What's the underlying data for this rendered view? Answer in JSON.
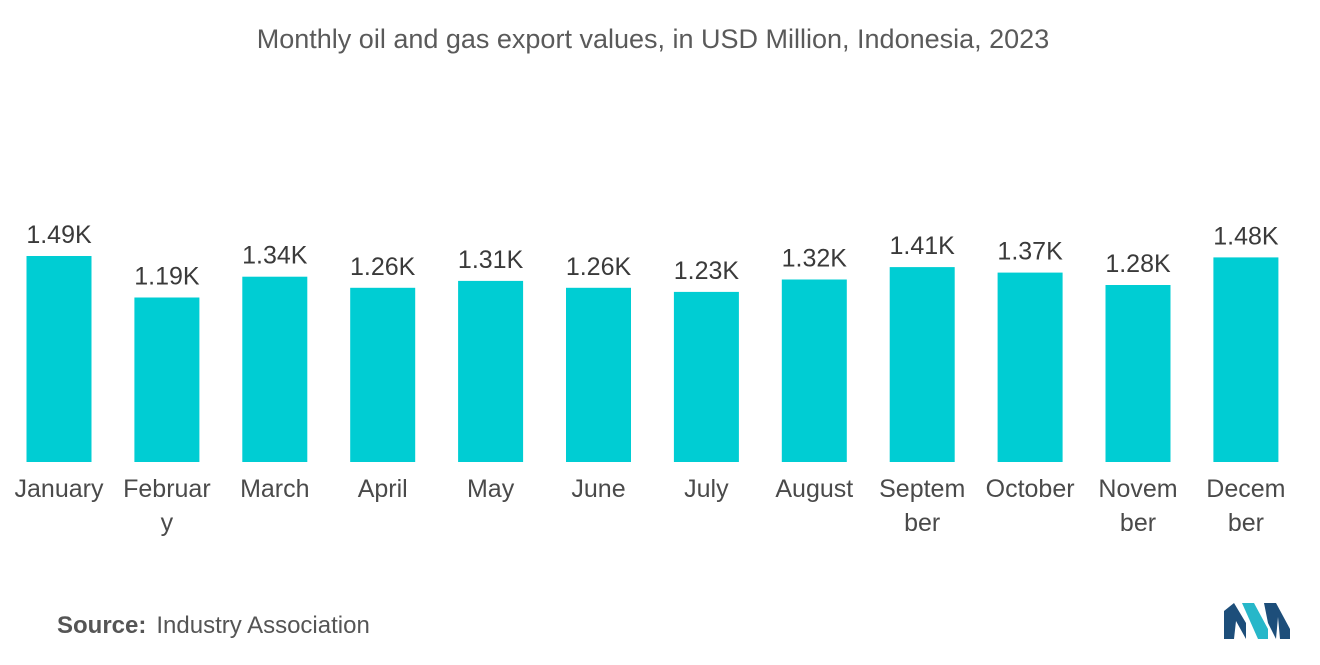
{
  "title": "Monthly oil and gas export values, in USD Million, Indonesia, 2023",
  "source": {
    "label": "Source:",
    "text": "Industry Association"
  },
  "colors": {
    "bar": "#00CDD3",
    "logo_dark": "#1D4E7A",
    "logo_light": "#27B7C9"
  },
  "logo_icon": "brand-logo-icon",
  "chart_data": {
    "type": "bar",
    "title": "Monthly oil and gas export values, in USD Million, Indonesia, 2023",
    "xlabel": "",
    "ylabel": "",
    "grid": false,
    "categories": [
      "January",
      "February",
      "March",
      "April",
      "May",
      "June",
      "July",
      "August",
      "September",
      "October",
      "November",
      "December"
    ],
    "category_label_lines": [
      [
        "January"
      ],
      [
        "Februar",
        "y"
      ],
      [
        "March"
      ],
      [
        "April"
      ],
      [
        "May"
      ],
      [
        "June"
      ],
      [
        "July"
      ],
      [
        "August"
      ],
      [
        "Septem",
        "ber"
      ],
      [
        "October"
      ],
      [
        "Novem",
        "ber"
      ],
      [
        "Decem",
        "ber"
      ]
    ],
    "values": [
      1490,
      1190,
      1340,
      1260,
      1310,
      1260,
      1230,
      1320,
      1410,
      1370,
      1280,
      1480
    ],
    "data_labels": [
      "1.49K",
      "1.19K",
      "1.34K",
      "1.26K",
      "1.31K",
      "1.26K",
      "1.23K",
      "1.32K",
      "1.41K",
      "1.37K",
      "1.28K",
      "1.48K"
    ]
  }
}
